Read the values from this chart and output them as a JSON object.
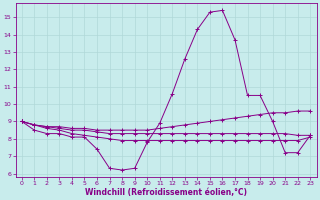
{
  "xlabel": "Windchill (Refroidissement éolien,°C)",
  "xlim": [
    -0.5,
    23.5
  ],
  "ylim": [
    5.8,
    15.8
  ],
  "yticks": [
    6,
    7,
    8,
    9,
    10,
    11,
    12,
    13,
    14,
    15
  ],
  "xticks": [
    0,
    1,
    2,
    3,
    4,
    5,
    6,
    7,
    8,
    9,
    10,
    11,
    12,
    13,
    14,
    15,
    16,
    17,
    18,
    19,
    20,
    21,
    22,
    23
  ],
  "background_color": "#c8ecec",
  "line_color": "#880088",
  "grid_color": "#b0d8d8",
  "series_main": {
    "x": [
      0,
      1,
      2,
      3,
      4,
      5,
      6,
      7,
      8,
      9,
      10,
      11,
      12,
      13,
      14,
      15,
      16,
      17,
      18,
      19,
      20,
      21,
      22,
      23
    ],
    "y": [
      9.0,
      8.5,
      8.3,
      8.3,
      8.1,
      8.1,
      7.4,
      6.3,
      6.2,
      6.3,
      7.8,
      8.9,
      10.6,
      12.6,
      14.3,
      15.3,
      15.4,
      13.7,
      10.5,
      10.5,
      9.0,
      7.2,
      7.2,
      8.2
    ]
  },
  "series_line2": {
    "x": [
      0,
      1,
      2,
      3,
      4,
      5,
      6,
      7,
      8,
      9,
      10,
      11,
      12,
      13,
      14,
      15,
      16,
      17,
      18,
      19,
      20,
      21,
      22,
      23
    ],
    "y": [
      9.0,
      8.8,
      8.7,
      8.7,
      8.6,
      8.6,
      8.5,
      8.5,
      8.5,
      8.5,
      8.5,
      8.6,
      8.7,
      8.8,
      8.9,
      9.0,
      9.1,
      9.2,
      9.3,
      9.4,
      9.5,
      9.5,
      9.6,
      9.6
    ]
  },
  "series_line3": {
    "x": [
      0,
      1,
      2,
      3,
      4,
      5,
      6,
      7,
      8,
      9,
      10,
      11,
      12,
      13,
      14,
      15,
      16,
      17,
      18,
      19,
      20,
      21,
      22,
      23
    ],
    "y": [
      9.0,
      8.8,
      8.7,
      8.6,
      8.5,
      8.5,
      8.4,
      8.3,
      8.3,
      8.3,
      8.3,
      8.3,
      8.3,
      8.3,
      8.3,
      8.3,
      8.3,
      8.3,
      8.3,
      8.3,
      8.3,
      8.3,
      8.2,
      8.2
    ]
  },
  "series_line4": {
    "x": [
      0,
      1,
      2,
      3,
      4,
      5,
      6,
      7,
      8,
      9,
      10,
      11,
      12,
      13,
      14,
      15,
      16,
      17,
      18,
      19,
      20,
      21,
      22,
      23
    ],
    "y": [
      9.0,
      8.8,
      8.6,
      8.5,
      8.3,
      8.2,
      8.1,
      8.0,
      7.9,
      7.9,
      7.9,
      7.9,
      7.9,
      7.9,
      7.9,
      7.9,
      7.9,
      7.9,
      7.9,
      7.9,
      7.9,
      7.9,
      7.9,
      8.1
    ]
  }
}
